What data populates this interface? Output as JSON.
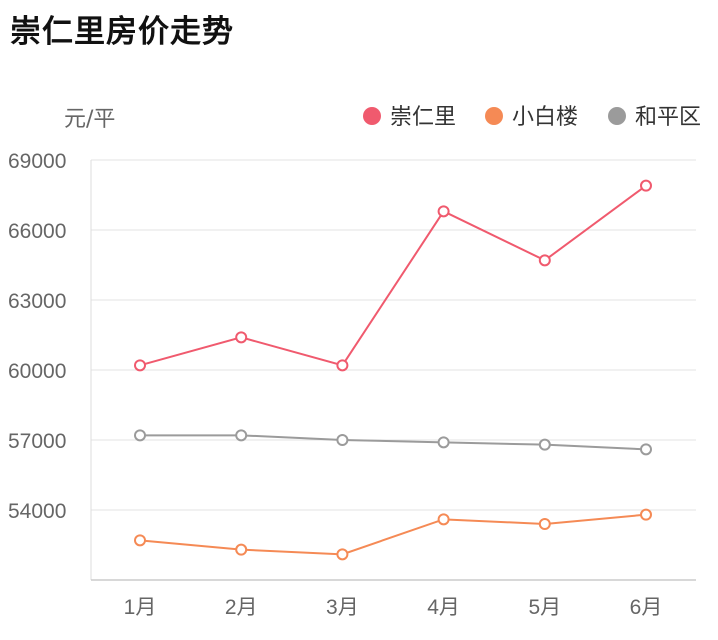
{
  "title": "崇仁里房价走势",
  "chart_data": {
    "type": "line",
    "title": "崇仁里房价走势",
    "ylabel": "元/平",
    "xlabel": "",
    "categories": [
      "1月",
      "2月",
      "3月",
      "4月",
      "5月",
      "6月"
    ],
    "ylim": [
      51000,
      69000
    ],
    "yticks": [
      54000,
      57000,
      60000,
      63000,
      66000,
      69000
    ],
    "grid": true,
    "legend_position": "top-right",
    "series": [
      {
        "name": "崇仁里",
        "color": "#f05a6e",
        "values": [
          60200,
          61400,
          60200,
          66800,
          64700,
          67900
        ]
      },
      {
        "name": "小白楼",
        "color": "#f58a55",
        "values": [
          52700,
          52300,
          52100,
          53600,
          53400,
          53800
        ]
      },
      {
        "name": "和平区",
        "color": "#9b9b9b",
        "values": [
          57200,
          57200,
          57000,
          56900,
          56800,
          56600
        ]
      }
    ]
  }
}
